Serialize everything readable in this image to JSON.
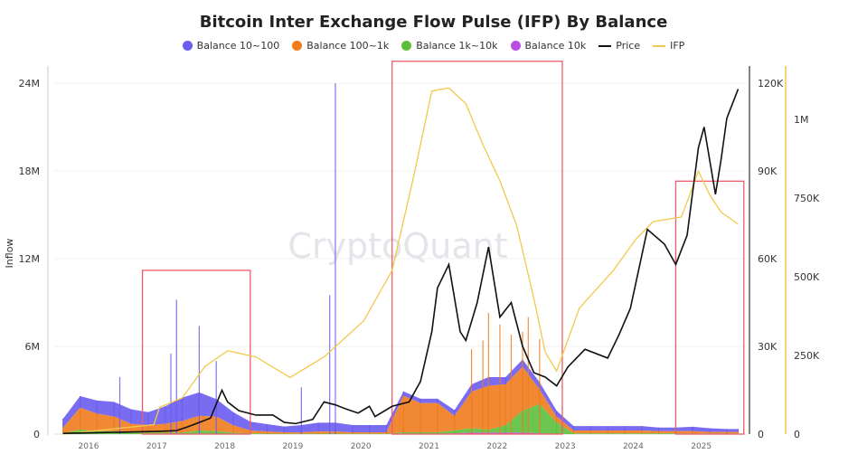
{
  "chart_data": {
    "type": "bar",
    "title": "Bitcoin Inter Exchange Flow Pulse (IFP) By Balance",
    "watermark": "CryptoQuant",
    "ylabel": "Inflow",
    "ylim": [
      0,
      24000000
    ],
    "y_ticks": [
      "0",
      "6M",
      "12M",
      "18M",
      "24M"
    ],
    "y2_ticks": [
      "0",
      "30K",
      "60K",
      "90K",
      "120K"
    ],
    "y2lim": [
      0,
      120000
    ],
    "y3_ticks": [
      "0",
      "250K",
      "500K",
      "750K",
      "1M"
    ],
    "y3_tick_values": [
      0,
      250000,
      500000,
      750000,
      1000000
    ],
    "y3lim": [
      0,
      1115000
    ],
    "x_ticks": [
      "2016",
      "2017",
      "2018",
      "2019",
      "2020",
      "2021",
      "2022",
      "2023",
      "2024",
      "2025"
    ],
    "grid": true,
    "legend_placement": "top",
    "colors": {
      "b10_100": "#6c5cf0",
      "b100_1k": "#f07c1e",
      "b1k_10k": "#5cbf3c",
      "b10k": "#b84ee0",
      "price": "#111111",
      "ifp": "#f2c94c",
      "highlight": "#ee5c66"
    },
    "legend": [
      {
        "key": "b10_100",
        "label": "Balance 10~100",
        "kind": "dot"
      },
      {
        "key": "b100_1k",
        "label": "Balance 100~1k",
        "kind": "dot"
      },
      {
        "key": "b1k_10k",
        "label": "Balance 1k~10k",
        "kind": "dot"
      },
      {
        "key": "b10k",
        "label": "Balance 10k",
        "kind": "dot"
      },
      {
        "key": "price",
        "label": "Price",
        "kind": "line"
      },
      {
        "key": "ifp",
        "label": "IFP",
        "kind": "line"
      }
    ],
    "inflow_dates": [
      "2015-08",
      "2015-11",
      "2016-02",
      "2016-05",
      "2016-08",
      "2016-11",
      "2017-02",
      "2017-05",
      "2017-08",
      "2017-11",
      "2018-02",
      "2018-05",
      "2018-08",
      "2018-11",
      "2019-02",
      "2019-05",
      "2019-08",
      "2019-11",
      "2020-02",
      "2020-05",
      "2020-08",
      "2020-11",
      "2021-02",
      "2021-05",
      "2021-08",
      "2021-11",
      "2022-02",
      "2022-05",
      "2022-08",
      "2022-11",
      "2023-02",
      "2023-05",
      "2023-08",
      "2023-11",
      "2024-02",
      "2024-05",
      "2024-08",
      "2024-11",
      "2025-02",
      "2025-05",
      "2025-07"
    ],
    "series": [
      {
        "key": "b10_100",
        "name": "Balance 10~100",
        "values": [
          0.6,
          0.8,
          0.9,
          1.0,
          1.0,
          0.9,
          1.2,
          1.6,
          1.6,
          1.2,
          0.9,
          0.6,
          0.5,
          0.4,
          0.5,
          0.6,
          0.6,
          0.5,
          0.5,
          0.5,
          0.3,
          0.3,
          0.3,
          0.4,
          0.5,
          0.6,
          0.5,
          0.5,
          0.5,
          0.4,
          0.3,
          0.3,
          0.3,
          0.3,
          0.3,
          0.25,
          0.25,
          0.3,
          0.25,
          0.2,
          0.2
        ]
      },
      {
        "key": "b100_1k",
        "name": "Balance 100~1k",
        "values": [
          0.4,
          1.5,
          1.2,
          1.0,
          0.6,
          0.5,
          0.6,
          0.8,
          1.0,
          1.0,
          0.5,
          0.2,
          0.15,
          0.1,
          0.1,
          0.15,
          0.15,
          0.1,
          0.1,
          0.1,
          2.5,
          2.0,
          2.0,
          1.0,
          2.5,
          3.0,
          2.8,
          3.0,
          1.0,
          0.4,
          0.2,
          0.2,
          0.2,
          0.2,
          0.2,
          0.15,
          0.15,
          0.15,
          0.1,
          0.1,
          0.1
        ]
      },
      {
        "key": "b1k_10k",
        "name": "Balance 1k~10k",
        "values": [
          0.05,
          0.3,
          0.2,
          0.2,
          0.1,
          0.1,
          0.1,
          0.1,
          0.2,
          0.2,
          0.1,
          0.05,
          0.03,
          0.02,
          0.02,
          0.03,
          0.03,
          0.02,
          0.02,
          0.02,
          0.1,
          0.1,
          0.1,
          0.2,
          0.3,
          0.2,
          0.5,
          1.5,
          2.0,
          0.8,
          0.05,
          0.05,
          0.05,
          0.05,
          0.05,
          0.05,
          0.05,
          0.05,
          0.05,
          0.05,
          0.05
        ]
      },
      {
        "key": "b10k",
        "name": "Balance 10k",
        "values": [
          0,
          0,
          0,
          0,
          0,
          0,
          0,
          0,
          0.05,
          0,
          0,
          0,
          0,
          0,
          0,
          0,
          0,
          0,
          0,
          0,
          0.02,
          0.02,
          0.02,
          0.05,
          0.1,
          0.1,
          0.1,
          0.1,
          0.05,
          0,
          0,
          0,
          0,
          0,
          0,
          0,
          0,
          0,
          0,
          0,
          0
        ]
      }
    ],
    "inflow_units": "M",
    "spikes": [
      {
        "date": "2019-08",
        "key": "b10_100",
        "value": 24.0
      },
      {
        "date": "2019-07",
        "key": "b10_100",
        "value": 9.5
      },
      {
        "date": "2017-04",
        "key": "b10_100",
        "value": 9.2
      },
      {
        "date": "2017-08",
        "key": "b10_100",
        "value": 7.4
      },
      {
        "date": "2017-03",
        "key": "b10_100",
        "value": 5.5
      },
      {
        "date": "2016-06",
        "key": "b10_100",
        "value": 3.9
      },
      {
        "date": "2017-11",
        "key": "b10_100",
        "value": 5.0
      },
      {
        "date": "2019-02",
        "key": "b10_100",
        "value": 3.2
      },
      {
        "date": "2021-08",
        "key": "b100_1k",
        "value": 5.8
      },
      {
        "date": "2021-10",
        "key": "b100_1k",
        "value": 6.4
      },
      {
        "date": "2021-11",
        "key": "b100_1k",
        "value": 8.3
      },
      {
        "date": "2022-01",
        "key": "b100_1k",
        "value": 7.5
      },
      {
        "date": "2022-03",
        "key": "b100_1k",
        "value": 6.8
      },
      {
        "date": "2022-05",
        "key": "b100_1k",
        "value": 7.0
      },
      {
        "date": "2022-06",
        "key": "b100_1k",
        "value": 8.0
      },
      {
        "date": "2022-08",
        "key": "b100_1k",
        "value": 6.5
      }
    ],
    "price": {
      "name": "Price",
      "dates": [
        "2015-08",
        "2016-01",
        "2016-06",
        "2017-01",
        "2017-04",
        "2017-06",
        "2017-08",
        "2017-10",
        "2017-12",
        "2018-01",
        "2018-03",
        "2018-06",
        "2018-09",
        "2018-11",
        "2019-01",
        "2019-04",
        "2019-06",
        "2019-08",
        "2019-10",
        "2019-12",
        "2020-02",
        "2020-03",
        "2020-06",
        "2020-09",
        "2020-11",
        "2021-01",
        "2021-02",
        "2021-04",
        "2021-06",
        "2021-07",
        "2021-09",
        "2021-11",
        "2022-01",
        "2022-03",
        "2022-05",
        "2022-07",
        "2022-09",
        "2022-11",
        "2023-01",
        "2023-04",
        "2023-08",
        "2023-10",
        "2023-12",
        "2024-03",
        "2024-06",
        "2024-08",
        "2024-10",
        "2024-12",
        "2025-01",
        "2025-03",
        "2025-04",
        "2025-05",
        "2025-07"
      ],
      "values": [
        250,
        430,
        650,
        950,
        1200,
        2500,
        4000,
        5500,
        15000,
        11000,
        8000,
        6500,
        6500,
        4000,
        3600,
        5000,
        11000,
        10000,
        8500,
        7200,
        9500,
        6000,
        9500,
        11000,
        18000,
        35000,
        50000,
        58000,
        35000,
        32000,
        45000,
        64000,
        40000,
        45000,
        30000,
        21000,
        19500,
        16500,
        23000,
        29000,
        26000,
        34000,
        43000,
        70000,
        65000,
        58000,
        68000,
        98000,
        105000,
        82000,
        94000,
        108000,
        118000
      ]
    },
    "ifp": {
      "name": "IFP",
      "dates": [
        "2015-08",
        "2016-12",
        "2017-01",
        "2017-05",
        "2017-09",
        "2018-01",
        "2018-06",
        "2018-12",
        "2019-06",
        "2020-01",
        "2020-06",
        "2020-10",
        "2021-01",
        "2021-04",
        "2021-07",
        "2021-10",
        "2022-01",
        "2022-04",
        "2022-07",
        "2022-09",
        "2022-11",
        "2023-03",
        "2023-06",
        "2023-09",
        "2024-01",
        "2024-04",
        "2024-09",
        "2024-12",
        "2025-02",
        "2025-04",
        "2025-07"
      ],
      "values": [
        0,
        30000,
        85000,
        115000,
        215000,
        265000,
        245000,
        180000,
        245000,
        360000,
        520000,
        835000,
        1090000,
        1100000,
        1050000,
        920000,
        805000,
        660000,
        430000,
        260000,
        200000,
        400000,
        460000,
        520000,
        620000,
        675000,
        690000,
        835000,
        760000,
        705000,
        667000
      ]
    },
    "highlight_boxes": [
      {
        "from": "2016-10",
        "to": "2018-05",
        "top": 11200000
      },
      {
        "from": "2020-06",
        "to": "2022-12",
        "top": 25500000
      },
      {
        "from": "2024-08",
        "to": "2025-08",
        "top": 17300000
      }
    ]
  }
}
